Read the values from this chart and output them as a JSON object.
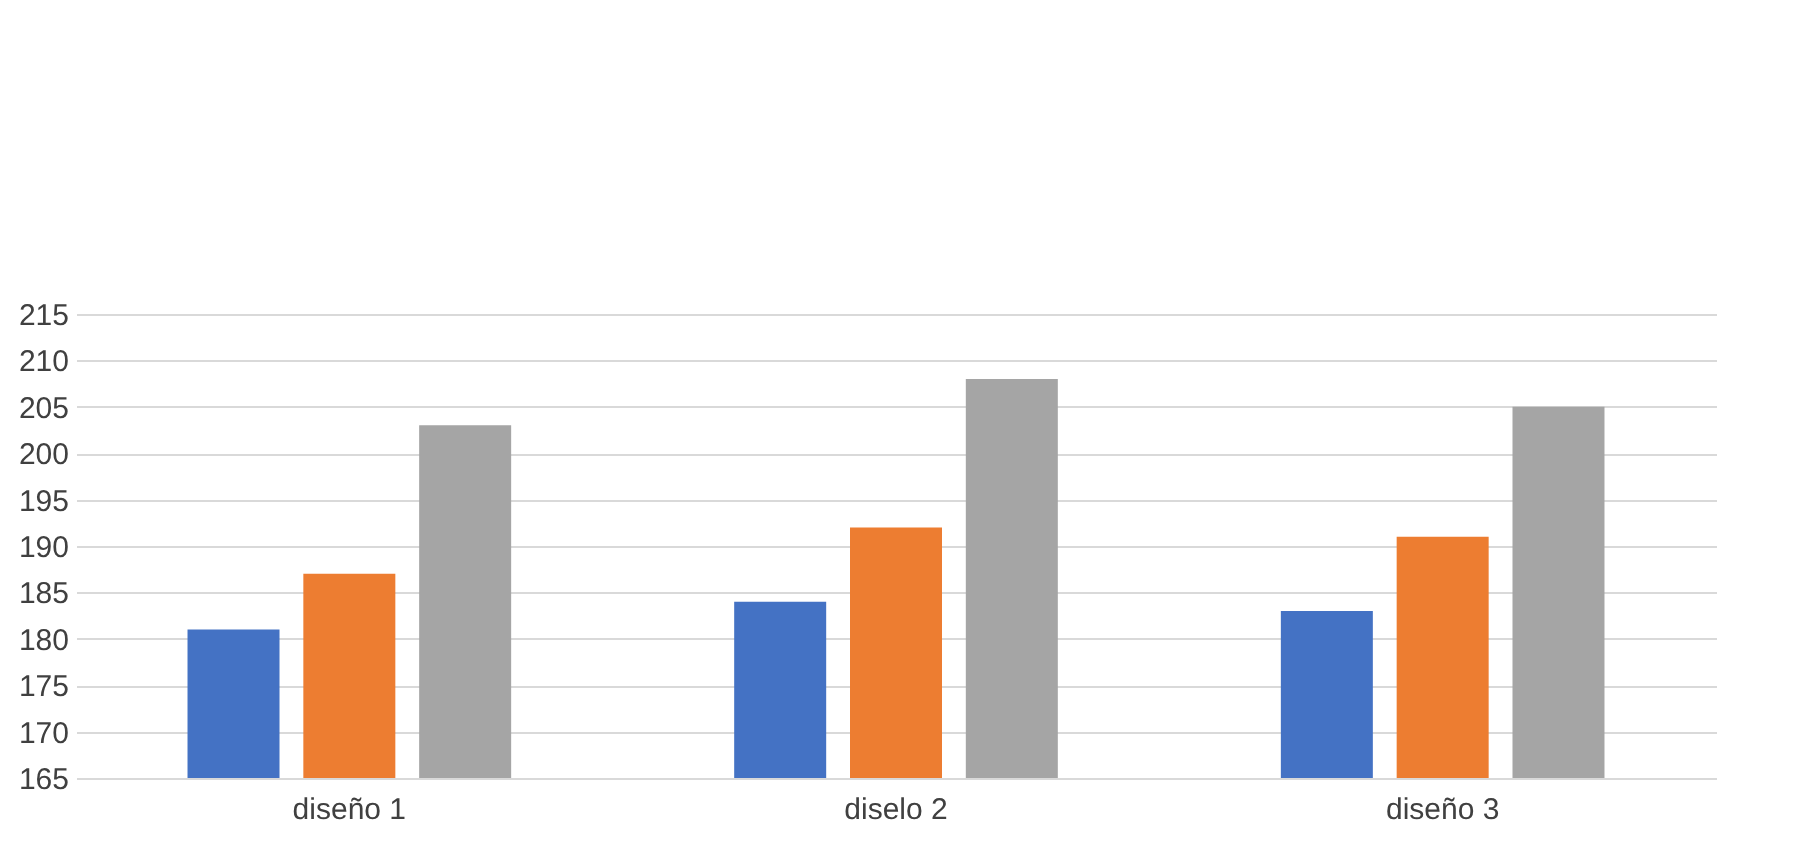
{
  "chart_data": {
    "type": "bar",
    "categories": [
      "diseño 1",
      "diselo 2",
      "diseño 3"
    ],
    "series": [
      {
        "color": "#4472c4",
        "values": [
          181,
          184,
          183
        ]
      },
      {
        "color": "#ed7d31",
        "values": [
          187,
          192,
          191
        ]
      },
      {
        "color": "#a5a5a5",
        "values": [
          203,
          208,
          205
        ]
      }
    ],
    "ylim": [
      165,
      215
    ],
    "yticks": [
      165,
      170,
      175,
      180,
      185,
      190,
      195,
      200,
      205,
      210,
      215
    ],
    "grid": "y",
    "legend": false
  }
}
